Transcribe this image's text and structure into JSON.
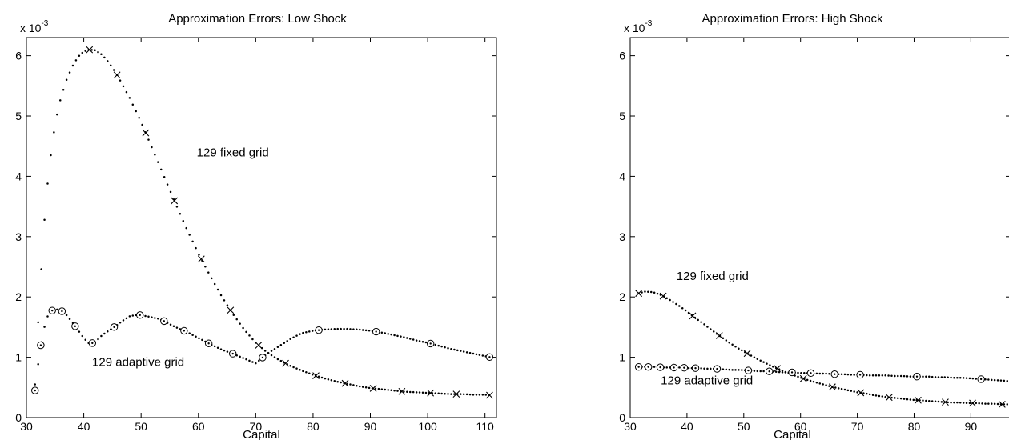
{
  "chart_data": [
    {
      "type": "scatter",
      "title": "Approximation Errors: Low Shock",
      "xlabel": "Capital",
      "ylabel": "",
      "y_scale_factor": "x 10",
      "y_scale_exponent": "-3",
      "xlim": [
        30,
        112
      ],
      "ylim": [
        0,
        6.3
      ],
      "xticks": [
        30,
        40,
        50,
        60,
        70,
        80,
        90,
        100,
        110
      ],
      "yticks": [
        0,
        1,
        2,
        3,
        4,
        5,
        6
      ],
      "grid": false,
      "annotations": [
        {
          "text": "129 fixed grid",
          "x": 66,
          "y": 4.4
        },
        {
          "text": "129 adaptive grid",
          "x": 49.5,
          "y": 0.92
        }
      ],
      "series": [
        {
          "label": "129 fixed grid",
          "marker": "x",
          "x": [
            31.5,
            32.0,
            32.5,
            33.0,
            33.5,
            34.0,
            34.5,
            35.0,
            35.5,
            36.0,
            37.0,
            38.0,
            39.0,
            40.0,
            41.0,
            42.0,
            43.0,
            44.0,
            45.0,
            46.0,
            48.0,
            50.0,
            52.0,
            54.0,
            56.0,
            58.0,
            60.0,
            62.0,
            64.0,
            66.0,
            68.0,
            70.0,
            72.0,
            74.0,
            76.0,
            78.0,
            80.0,
            82.0,
            84.0,
            86.0,
            88.0,
            90.0,
            92.0,
            94.0,
            96.0,
            98.0,
            100.0,
            102.0,
            104.0,
            106.0,
            108.0,
            110.0,
            111.0
          ],
          "y": [
            0.55,
            1.5,
            2.3,
            3.1,
            3.7,
            4.15,
            4.55,
            4.85,
            5.1,
            5.3,
            5.6,
            5.82,
            5.98,
            6.07,
            6.1,
            6.09,
            6.03,
            5.93,
            5.8,
            5.65,
            5.3,
            4.9,
            4.45,
            4.0,
            3.55,
            3.12,
            2.72,
            2.36,
            2.02,
            1.72,
            1.46,
            1.24,
            1.08,
            0.96,
            0.86,
            0.78,
            0.71,
            0.65,
            0.6,
            0.56,
            0.52,
            0.49,
            0.47,
            0.45,
            0.43,
            0.42,
            0.41,
            0.4,
            0.39,
            0.39,
            0.38,
            0.38,
            0.37
          ],
          "marked_x": [
            41.0,
            45.8,
            50.8,
            55.8,
            60.5,
            65.6,
            70.5,
            75.2,
            80.5,
            85.6,
            90.5,
            95.5,
            100.5,
            105.0,
            110.8
          ]
        },
        {
          "label": "129 adaptive grid",
          "marker": "o",
          "x": [
            31.5,
            32.0,
            32.5,
            33.0,
            33.5,
            34.0,
            35.0,
            36.0,
            37.0,
            38.0,
            39.0,
            40.0,
            41.0,
            42.0,
            43.0,
            44.0,
            45.0,
            46.0,
            47.0,
            48.0,
            49.0,
            50.0,
            51.0,
            52.0,
            53.0,
            54.0,
            56.0,
            58.0,
            60.0,
            62.0,
            64.0,
            66.0,
            68.0,
            70.0,
            71.0,
            72.0,
            74.0,
            76.0,
            78.0,
            80.0,
            82.0,
            84.0,
            86.0,
            88.0,
            90.0,
            92.0,
            94.0,
            96.0,
            98.0,
            100.0,
            102.0,
            104.0,
            106.0,
            108.0,
            110.0,
            111.0
          ],
          "y": [
            0.45,
            0.85,
            1.2,
            1.45,
            1.63,
            1.75,
            1.8,
            1.78,
            1.7,
            1.58,
            1.45,
            1.32,
            1.22,
            1.25,
            1.35,
            1.42,
            1.48,
            1.55,
            1.62,
            1.68,
            1.7,
            1.7,
            1.68,
            1.66,
            1.64,
            1.6,
            1.5,
            1.42,
            1.32,
            1.22,
            1.13,
            1.06,
            0.98,
            0.9,
            0.98,
            1.06,
            1.18,
            1.3,
            1.4,
            1.44,
            1.46,
            1.47,
            1.47,
            1.46,
            1.44,
            1.41,
            1.37,
            1.33,
            1.28,
            1.24,
            1.19,
            1.14,
            1.1,
            1.06,
            1.02,
            1.0
          ],
          "marked_x": [
            31.5,
            32.5,
            34.5,
            36.2,
            38.5,
            41.5,
            45.3,
            49.8,
            54.0,
            57.5,
            61.8,
            66.0,
            71.2,
            81.0,
            91.0,
            100.5,
            110.8
          ]
        }
      ]
    },
    {
      "type": "scatter",
      "title": "Approximation Errors: High Shock",
      "xlabel": "Capital",
      "ylabel": "",
      "y_scale_factor": "x 10",
      "y_scale_exponent": "-3",
      "xlim": [
        30,
        97
      ],
      "ylim": [
        0,
        6.3
      ],
      "xticks": [
        30,
        40,
        50,
        60,
        70,
        80,
        90
      ],
      "yticks": [
        0,
        1,
        2,
        3,
        4,
        5,
        6
      ],
      "grid": false,
      "annotations": [
        {
          "text": "129 fixed grid",
          "x": 44.5,
          "y": 2.35
        },
        {
          "text": "129 adaptive grid",
          "x": 43.5,
          "y": 0.62
        }
      ],
      "series": [
        {
          "label": "129 fixed grid",
          "marker": "x",
          "x": [
            31.5,
            32.5,
            34.0,
            35.5,
            37.0,
            38.5,
            40.0,
            41.5,
            43.0,
            44.5,
            46.0,
            47.5,
            49.0,
            50.5,
            52.0,
            53.5,
            55.0,
            56.5,
            58.0,
            59.5,
            61.0,
            62.5,
            64.0,
            65.5,
            67.0,
            68.5,
            70.0,
            71.5,
            73.0,
            74.5,
            76.0,
            77.5,
            79.0,
            80.5,
            82.0,
            83.5,
            85.0,
            86.5,
            88.0,
            89.5,
            91.0,
            92.5,
            94.0,
            95.5,
            97.0
          ],
          "y": [
            2.06,
            2.09,
            2.08,
            2.03,
            1.95,
            1.86,
            1.76,
            1.65,
            1.55,
            1.44,
            1.34,
            1.24,
            1.15,
            1.07,
            0.99,
            0.92,
            0.85,
            0.79,
            0.73,
            0.68,
            0.63,
            0.59,
            0.55,
            0.51,
            0.48,
            0.45,
            0.42,
            0.4,
            0.37,
            0.35,
            0.33,
            0.32,
            0.3,
            0.29,
            0.28,
            0.27,
            0.26,
            0.25,
            0.25,
            0.24,
            0.24,
            0.23,
            0.23,
            0.22,
            0.22
          ],
          "marked_x": [
            31.5,
            35.8,
            41.0,
            45.7,
            50.6,
            55.9,
            60.5,
            65.6,
            70.6,
            75.6,
            80.7,
            85.5,
            90.3,
            95.5
          ]
        },
        {
          "label": "129 adaptive grid",
          "marker": "o",
          "x": [
            31.5,
            33.0,
            34.5,
            36.0,
            37.5,
            39.0,
            40.5,
            42.0,
            43.5,
            45.0,
            46.5,
            48.0,
            49.5,
            51.0,
            52.5,
            54.0,
            55.5,
            57.0,
            58.5,
            60.0,
            61.5,
            63.0,
            64.5,
            66.0,
            67.5,
            69.0,
            70.5,
            72.0,
            73.5,
            75.0,
            76.5,
            78.0,
            79.5,
            81.0,
            82.5,
            84.0,
            85.5,
            87.0,
            88.5,
            90.0,
            91.5,
            93.0,
            94.5,
            96.0,
            97.0
          ],
          "y": [
            0.84,
            0.84,
            0.84,
            0.83,
            0.83,
            0.83,
            0.82,
            0.82,
            0.81,
            0.81,
            0.8,
            0.79,
            0.79,
            0.78,
            0.77,
            0.77,
            0.76,
            0.75,
            0.75,
            0.74,
            0.74,
            0.73,
            0.73,
            0.72,
            0.72,
            0.71,
            0.71,
            0.7,
            0.7,
            0.7,
            0.69,
            0.69,
            0.68,
            0.68,
            0.68,
            0.67,
            0.67,
            0.66,
            0.66,
            0.65,
            0.64,
            0.63,
            0.62,
            0.61,
            0.6
          ],
          "marked_x": [
            31.5,
            33.2,
            35.3,
            37.7,
            39.5,
            41.5,
            45.3,
            50.8,
            54.5,
            58.5,
            61.8,
            66.0,
            70.5,
            80.5,
            91.8
          ]
        }
      ]
    }
  ]
}
